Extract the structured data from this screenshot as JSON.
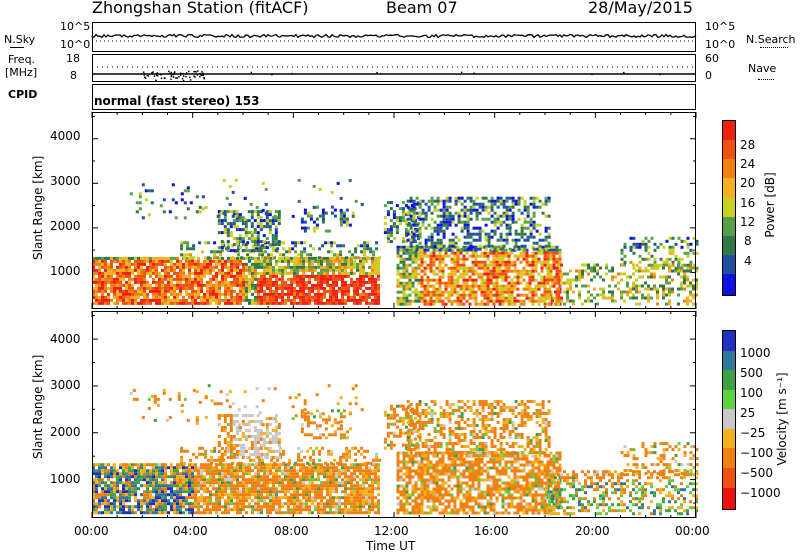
{
  "header": {
    "station": "Zhongshan Station (fitACF)",
    "beam": "Beam 07",
    "date": "28/May/2015"
  },
  "sky_panel": {
    "left_label": "N.Sky",
    "left_ticks": [
      "10^5",
      "10^0"
    ],
    "right_label": "N.Search",
    "right_ticks": [
      "10^5",
      "10^0"
    ]
  },
  "freq_panel": {
    "left_label_line1": "Freq.",
    "left_label_line2": "[MHz]",
    "left_ticks": [
      "18",
      "8"
    ],
    "right_label": "Nave",
    "right_ticks": [
      "60",
      "0"
    ]
  },
  "cpid": {
    "label": "CPID",
    "text": "normal (fast stereo) 153"
  },
  "chart_data": [
    {
      "type": "heatmap",
      "title": "",
      "ylabel": "Slant Range [km]",
      "yticks": [
        "1000",
        "2000",
        "3000",
        "4000"
      ],
      "xticks": [
        "00:00",
        "04:00",
        "08:00",
        "12:00",
        "16:00",
        "20:00",
        "00:00"
      ],
      "ylim": [
        180,
        4600
      ],
      "xlim_hours": [
        0,
        24
      ],
      "colorbar": {
        "label": "Power [dB]",
        "ticks": [
          "4",
          "8",
          "12",
          "16",
          "20",
          "24",
          "28"
        ],
        "colors": [
          "#1010e0",
          "#2050a0",
          "#307848",
          "#58a048",
          "#c8d020",
          "#f0b020",
          "#f08010",
          "#f05010",
          "#f02010"
        ]
      }
    },
    {
      "type": "heatmap",
      "title": "",
      "ylabel": "Slant Range [km]",
      "yticks": [
        "1000",
        "2000",
        "3000",
        "4000"
      ],
      "xticks": [
        "00:00",
        "04:00",
        "08:00",
        "12:00",
        "16:00",
        "20:00",
        "00:00"
      ],
      "xlabel": "Time UT",
      "ylim": [
        180,
        4600
      ],
      "xlim_hours": [
        0,
        24
      ],
      "colorbar": {
        "label": "Velocity [m s⁻¹]",
        "ticks": [
          "1000",
          "500",
          "100",
          "25",
          "−25",
          "−100",
          "−500",
          "−1000"
        ],
        "colors": [
          "#2030c0",
          "#307898",
          "#40a048",
          "#60d040",
          "#c8c8c8",
          "#f0b020",
          "#f08010",
          "#f05010",
          "#f01010"
        ]
      }
    }
  ]
}
